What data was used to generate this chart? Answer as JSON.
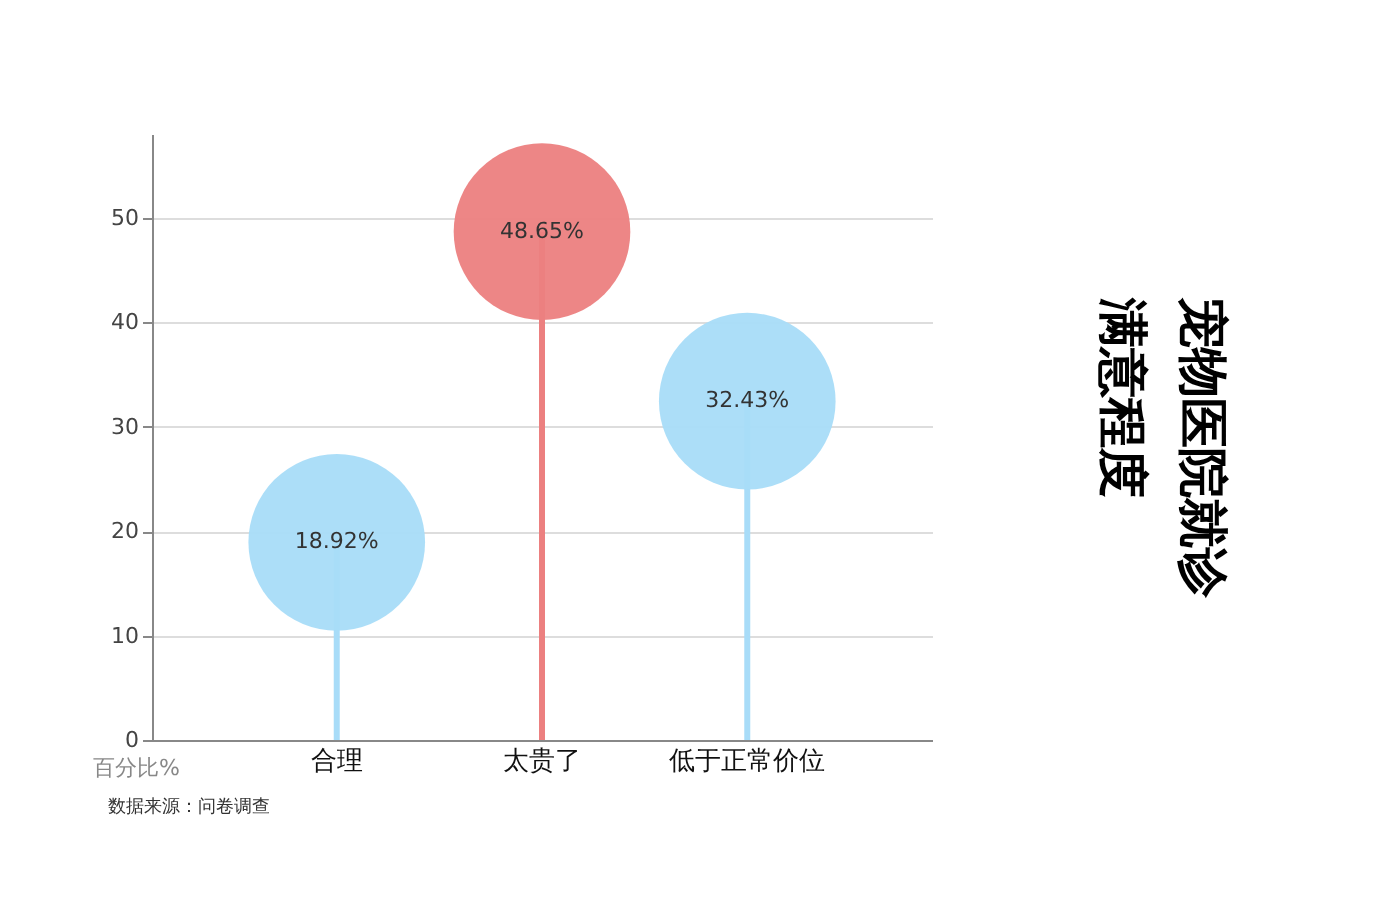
{
  "chart_data": {
    "type": "lollipop",
    "title": "宠物医院就诊",
    "subtitle": "满意程度",
    "ylabel": "百分比%",
    "categories": [
      "合理",
      "太贵了",
      "低于正常价位"
    ],
    "values": [
      18.92,
      48.65,
      32.43
    ],
    "colors": [
      "#a8dcf8",
      "#ec8080",
      "#a8dcf8"
    ],
    "value_labels": [
      "18.92%",
      "48.65%",
      "32.43%"
    ],
    "ylim": [
      0,
      58
    ],
    "yticks": [
      0,
      10,
      20,
      30,
      40,
      50
    ],
    "grid": "y",
    "annotations": [
      "数据来源：问卷调查"
    ]
  }
}
